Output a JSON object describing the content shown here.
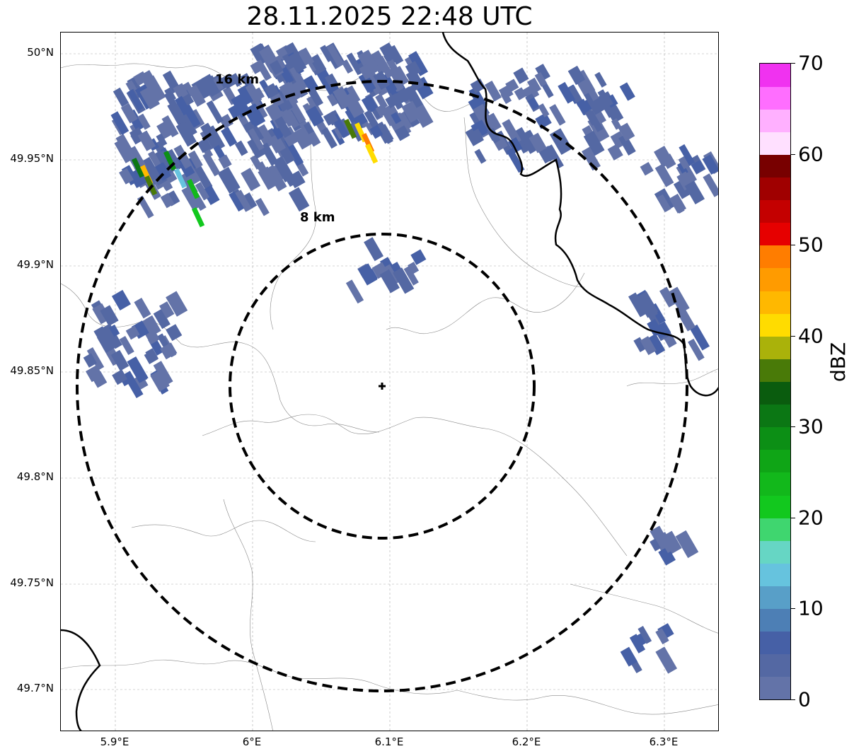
{
  "title": "28.11.2025 22:48 UTC",
  "map": {
    "lon_range": [
      5.86,
      6.34
    ],
    "lat_range": [
      49.68,
      50.01
    ],
    "radar_site": {
      "lon": 6.095,
      "lat": 49.843
    },
    "gridlines": true,
    "x_ticks": [
      "5.9°E",
      "6°E",
      "6.1°E",
      "6.2°E",
      "6.3°E"
    ],
    "y_ticks": [
      "50°N",
      "49.95°N",
      "49.9°N",
      "49.85°N",
      "49.8°N",
      "49.75°N",
      "49.7°N"
    ],
    "range_rings": [
      {
        "label": "8 km",
        "range_km": 8
      },
      {
        "label": "16 km",
        "range_km": 16
      }
    ]
  },
  "colorbar": {
    "label": "dBZ",
    "min": 0,
    "max": 70,
    "ticks": [
      "0",
      "10",
      "20",
      "30",
      "40",
      "50",
      "60",
      "70"
    ],
    "colors": [
      "#6373a8",
      "#5468a3",
      "#4660a6",
      "#4d7fb5",
      "#589fc8",
      "#66c3de",
      "#66d6c4",
      "#3fd66f",
      "#12c81e",
      "#12b81b",
      "#0fa516",
      "#0c8f15",
      "#0b7714",
      "#0a5c0e",
      "#497a08",
      "#aab20a",
      "#ffdc00",
      "#ffb800",
      "#ff9b00",
      "#ff7d00",
      "#e60000",
      "#c40000",
      "#a00000",
      "#780000",
      "#ffe0ff",
      "#ffb0ff",
      "#ff6eff",
      "#f032f0"
    ]
  }
}
